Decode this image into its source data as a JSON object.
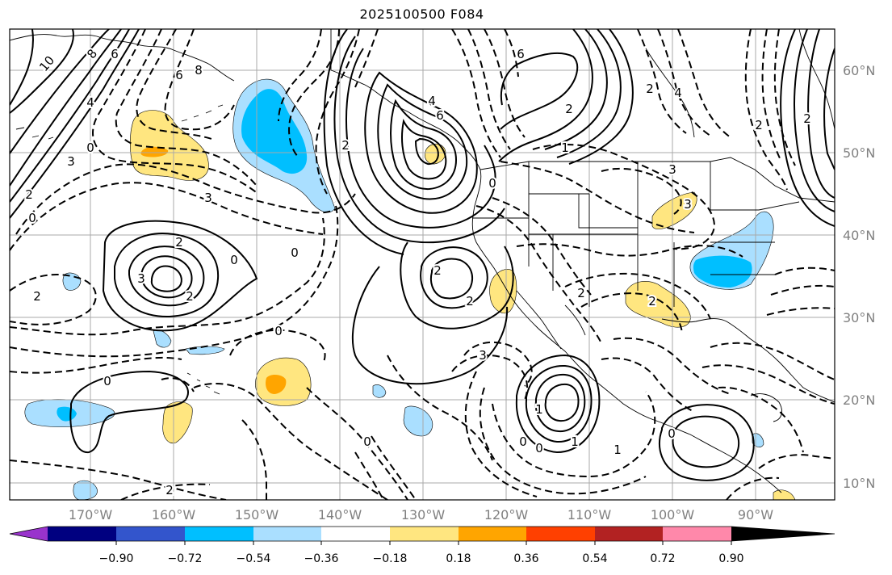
{
  "title": "2025100500 F084",
  "longitude_labels": [
    "170°W",
    "160°W",
    "150°W",
    "140°W",
    "130°W",
    "120°W",
    "110°W",
    "100°W",
    "90°W"
  ],
  "latitude_labels": [
    "60°N",
    "50°N",
    "40°N",
    "30°N",
    "20°N",
    "10°N"
  ],
  "colorbar": {
    "tick_labels": [
      "−0.90",
      "−0.72",
      "−0.54",
      "−0.36",
      "−0.18",
      "0.18",
      "0.36",
      "0.54",
      "0.72",
      "0.90"
    ],
    "colors": [
      "#9933cc",
      "#000080",
      "#3355cc",
      "#00bfff",
      "#aadfff",
      "#ffffff",
      "#ffe680",
      "#ffa500",
      "#ff4000",
      "#b22222",
      "#ff88aa"
    ]
  },
  "contour_labels": [
    {
      "id": "c1",
      "text": "10"
    },
    {
      "id": "c2",
      "text": "8"
    },
    {
      "id": "c3",
      "text": "6"
    },
    {
      "id": "c4",
      "text": "6"
    },
    {
      "id": "c5",
      "text": "8"
    },
    {
      "id": "c6",
      "text": "4"
    },
    {
      "id": "c7",
      "text": "3"
    },
    {
      "id": "c8",
      "text": "0"
    },
    {
      "id": "c9",
      "text": "2"
    },
    {
      "id": "c10",
      "text": "0"
    },
    {
      "id": "c11",
      "text": "3"
    },
    {
      "id": "c12",
      "text": "2"
    },
    {
      "id": "c13",
      "text": "3"
    },
    {
      "id": "c14",
      "text": "2"
    },
    {
      "id": "c15",
      "text": "0"
    },
    {
      "id": "c16",
      "text": "0"
    },
    {
      "id": "c17",
      "text": "2"
    },
    {
      "id": "c18",
      "text": "0"
    },
    {
      "id": "c19",
      "text": "0"
    },
    {
      "id": "c20",
      "text": "2"
    },
    {
      "id": "c21",
      "text": "4"
    },
    {
      "id": "c22",
      "text": "6"
    },
    {
      "id": "c23",
      "text": "2"
    },
    {
      "id": "c24",
      "text": "2"
    },
    {
      "id": "c25",
      "text": "2"
    },
    {
      "id": "c26",
      "text": "0"
    },
    {
      "id": "c27",
      "text": "6"
    },
    {
      "id": "c28",
      "text": "2"
    },
    {
      "id": "c29",
      "text": "4"
    },
    {
      "id": "c30",
      "text": "1"
    },
    {
      "id": "c31",
      "text": "3"
    },
    {
      "id": "c32",
      "text": "2"
    },
    {
      "id": "c33",
      "text": "2"
    },
    {
      "id": "c34",
      "text": "3"
    },
    {
      "id": "c35",
      "text": "2"
    },
    {
      "id": "c36",
      "text": "2"
    },
    {
      "id": "c37",
      "text": "3"
    },
    {
      "id": "c38",
      "text": "1"
    },
    {
      "id": "c39",
      "text": "0"
    },
    {
      "id": "c40",
      "text": "0"
    },
    {
      "id": "c41",
      "text": "1"
    },
    {
      "id": "c42",
      "text": "1"
    },
    {
      "id": "c43",
      "text": "0"
    },
    {
      "id": "c44",
      "text": "0"
    },
    {
      "id": "c45",
      "text": "2"
    }
  ]
}
